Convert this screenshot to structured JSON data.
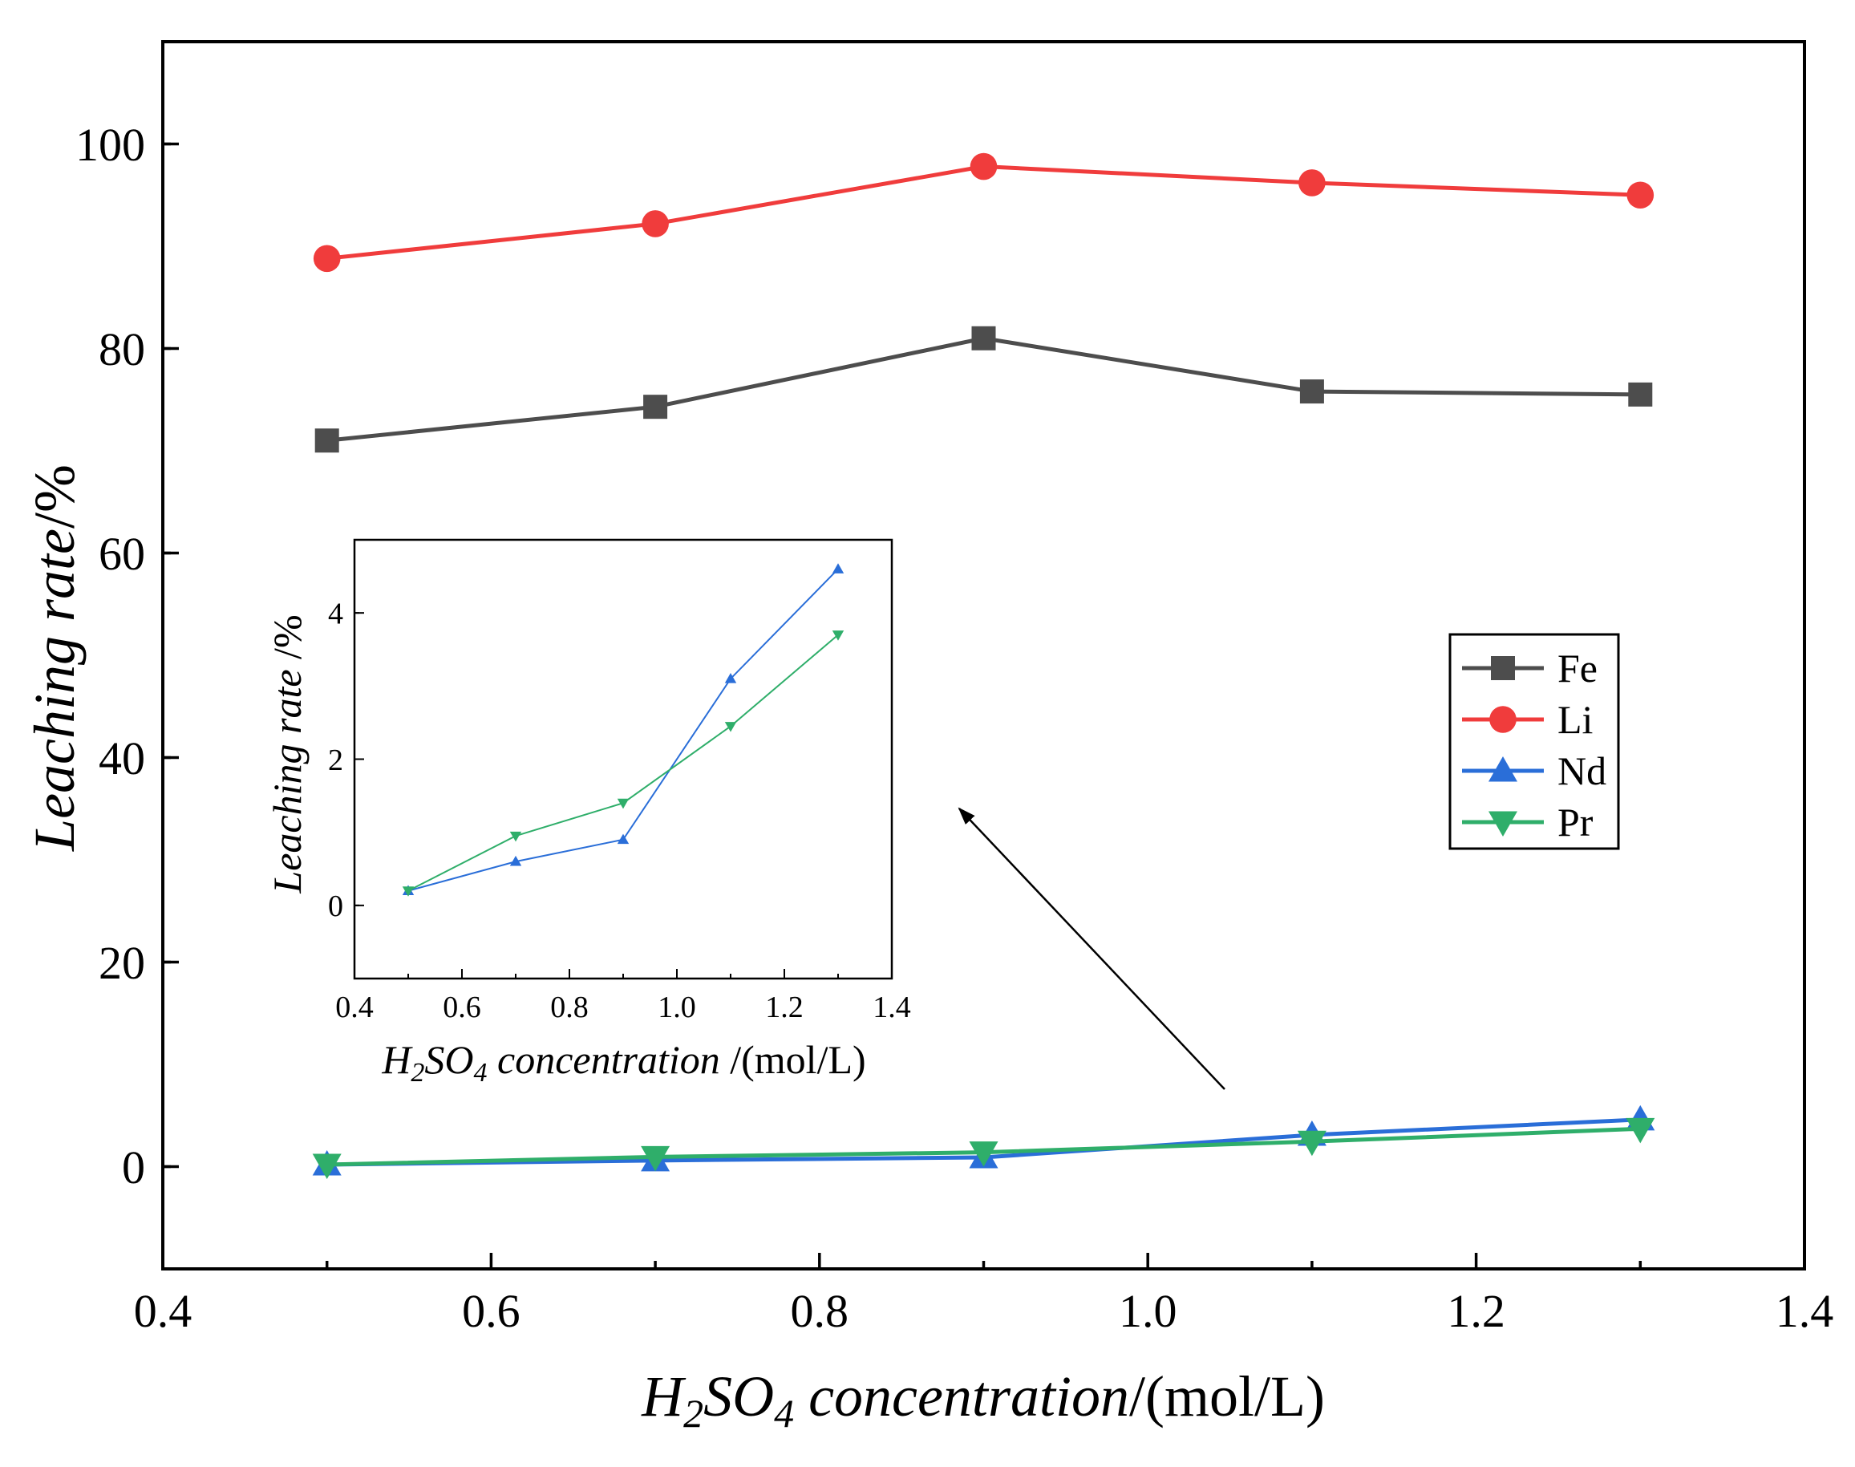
{
  "chart_data": [
    {
      "id": "main",
      "type": "line",
      "x_values": [
        0.5,
        0.7,
        0.9,
        1.1,
        1.3
      ],
      "series": [
        {
          "name": "Fe",
          "color": "#4d4d4d",
          "marker": "square",
          "values": [
            71.0,
            74.3,
            81.0,
            75.8,
            75.5
          ]
        },
        {
          "name": "Li",
          "color": "#f03c3c",
          "marker": "circle",
          "values": [
            88.8,
            92.2,
            97.8,
            96.2,
            95.0
          ]
        },
        {
          "name": "Nd",
          "color": "#2a6ed8",
          "marker": "triangle-up",
          "values": [
            0.2,
            0.6,
            0.9,
            3.1,
            4.6
          ]
        },
        {
          "name": "Pr",
          "color": "#2fae6a",
          "marker": "triangle-down",
          "values": [
            0.2,
            0.95,
            1.4,
            2.45,
            3.7
          ]
        }
      ],
      "xlim": [
        0.4,
        1.4
      ],
      "ylim": [
        -10,
        110
      ],
      "x_ticks": [
        0.4,
        0.6,
        0.8,
        1.0,
        1.2,
        1.4
      ],
      "x_tick_labels": [
        "0.4",
        "0.6",
        "0.8",
        "1.0",
        "1.2",
        "1.4"
      ],
      "y_ticks": [
        0,
        20,
        40,
        60,
        80,
        100
      ],
      "y_tick_labels": [
        "0",
        "20",
        "40",
        "60",
        "80",
        "100"
      ],
      "xlabel": {
        "italic": "H",
        "sub1": "2",
        "mid": "SO",
        "sub2": "4",
        "rest": " concentration",
        "unit": "/(mol/L)"
      },
      "ylabel": {
        "italic": "Leaching rate",
        "unit": "/%"
      },
      "legend": {
        "position": "right",
        "entries": [
          "Fe",
          "Li",
          "Nd",
          "Pr"
        ]
      }
    },
    {
      "id": "inset",
      "type": "line",
      "x_values": [
        0.5,
        0.7,
        0.9,
        1.1,
        1.3
      ],
      "series": [
        {
          "name": "Nd",
          "color": "#2a6ed8",
          "marker": "triangle-up",
          "values": [
            0.2,
            0.6,
            0.9,
            3.1,
            4.6
          ]
        },
        {
          "name": "Pr",
          "color": "#2fae6a",
          "marker": "triangle-down",
          "values": [
            0.2,
            0.95,
            1.4,
            2.45,
            3.7
          ]
        }
      ],
      "xlim": [
        0.4,
        1.4
      ],
      "ylim": [
        -1,
        5.0
      ],
      "x_ticks": [
        0.4,
        0.6,
        0.8,
        1.0,
        1.2,
        1.4
      ],
      "x_tick_labels": [
        "0.4",
        "0.6",
        "0.8",
        "1.0",
        "1.2",
        "1.4"
      ],
      "y_ticks": [
        0,
        2,
        4
      ],
      "y_tick_labels": [
        "0",
        "2",
        "4"
      ],
      "xlabel": {
        "italic": "H",
        "sub1": "2",
        "mid": "SO",
        "sub2": "4",
        "rest": " concentration ",
        "unit": "/(mol/L)"
      },
      "ylabel": {
        "italic": "Leaching rate ",
        "unit": "/%"
      },
      "annotation": "arrow pointing from low-value region of main plot to inset"
    }
  ]
}
